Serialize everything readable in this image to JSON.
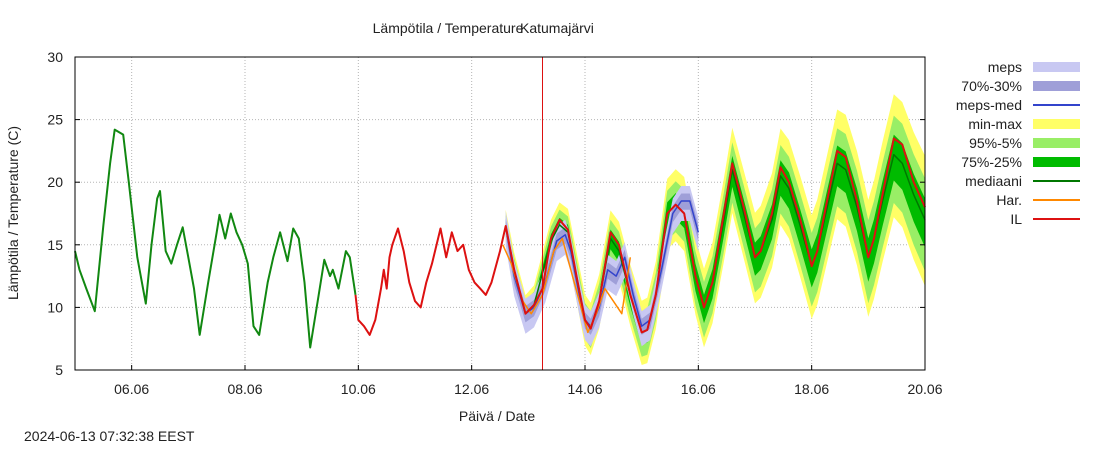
{
  "chart_data": {
    "type": "line",
    "title": "Lämpötila / Temperature",
    "station": "Katumajärvi",
    "xlabel": "Päivä / Date",
    "ylabel": "Lämpötila / Temperature (C)",
    "xlim": [
      5.0,
      20.0
    ],
    "ylim": [
      5,
      30
    ],
    "x_ticks": [
      6,
      8,
      10,
      12,
      14,
      16,
      18,
      20
    ],
    "x_tick_labels": [
      "06.06",
      "08.06",
      "10.06",
      "12.06",
      "14.06",
      "16.06",
      "18.06",
      "20.06"
    ],
    "y_ticks": [
      5,
      10,
      15,
      20,
      25,
      30
    ],
    "y_tick_labels": [
      "5",
      "10",
      "15",
      "20",
      "25",
      "30"
    ],
    "grid": true,
    "now_marker_x": 13.25,
    "legend": [
      {
        "label": "meps",
        "kind": "band",
        "color": "#c8c8f2"
      },
      {
        "label": "70%-30%",
        "kind": "band",
        "color": "#9f9fd8"
      },
      {
        "label": "meps-med",
        "kind": "line",
        "color": "#3344cc"
      },
      {
        "label": "min-max",
        "kind": "band",
        "color": "#ffff66"
      },
      {
        "label": "95%-5%",
        "kind": "band",
        "color": "#99ee66"
      },
      {
        "label": "75%-25%",
        "kind": "band",
        "color": "#00bb00"
      },
      {
        "label": "mediaani",
        "kind": "line",
        "color": "#007700"
      },
      {
        "label": "Har.",
        "kind": "line",
        "color": "#ff8800"
      },
      {
        "label": "IL",
        "kind": "line",
        "color": "#dd1111"
      }
    ],
    "series": [
      {
        "name": "observed",
        "color": "#118811",
        "x": [
          5.0,
          5.08,
          5.2,
          5.35,
          5.5,
          5.62,
          5.7,
          5.85,
          5.95,
          6.1,
          6.25,
          6.35,
          6.45,
          6.5,
          6.6,
          6.7,
          6.8,
          6.9,
          7.0,
          7.1,
          7.2,
          7.35,
          7.5,
          7.55,
          7.65,
          7.75,
          7.85,
          7.95,
          8.05,
          8.15,
          8.25,
          8.4,
          8.5,
          8.62,
          8.75,
          8.85,
          8.95,
          9.05,
          9.15,
          9.3,
          9.4,
          9.5,
          9.55,
          9.65,
          9.78,
          9.85,
          9.95
        ],
        "y": [
          14.5,
          13,
          11.5,
          9.7,
          16.5,
          21.5,
          24.2,
          23.8,
          20,
          14,
          10.3,
          15,
          18.7,
          19.3,
          14.5,
          13.5,
          15,
          16.4,
          14,
          11.5,
          7.8,
          12,
          16,
          17.4,
          15.5,
          17.5,
          16,
          15,
          13.5,
          8.5,
          7.8,
          12,
          14,
          16,
          13.7,
          16.3,
          15.5,
          12,
          6.8,
          11,
          13.8,
          12.5,
          13,
          11.5,
          14.5,
          14,
          11
        ]
      },
      {
        "name": "IL",
        "color": "#dd1111",
        "x": [
          9.95,
          10.0,
          10.1,
          10.2,
          10.3,
          10.4,
          10.45,
          10.5,
          10.55,
          10.6,
          10.7,
          10.8,
          10.9,
          11.0,
          11.1,
          11.2,
          11.3,
          11.45,
          11.55,
          11.65,
          11.75,
          11.85,
          11.95,
          12.05,
          12.15,
          12.25,
          12.35,
          12.5,
          12.6,
          12.75,
          12.95,
          13.1,
          13.25,
          13.4,
          13.55,
          13.7,
          13.85,
          14.0,
          14.1,
          14.25,
          14.45,
          14.6,
          14.8,
          15.0,
          15.1,
          15.25,
          15.45,
          15.6,
          15.75,
          15.95,
          16.1,
          16.25,
          16.45,
          16.6,
          16.8,
          17.0,
          17.1,
          17.3,
          17.45,
          17.6,
          17.8,
          18.0,
          18.1,
          18.25,
          18.45,
          18.6,
          18.8,
          19.0,
          19.1,
          19.25,
          19.45,
          19.6,
          19.8,
          20.0
        ],
        "y": [
          11,
          9,
          8.5,
          7.8,
          9,
          11.5,
          13,
          11.5,
          14,
          15,
          16.3,
          14.5,
          12,
          10.5,
          10,
          12,
          13.5,
          16.3,
          14,
          16,
          14.5,
          15,
          13,
          12,
          11.5,
          11,
          12,
          14.5,
          16.5,
          13,
          9.5,
          10.2,
          11.5,
          15.5,
          17,
          16.2,
          12.5,
          9,
          8.3,
          10.5,
          16,
          15,
          11,
          8,
          8.2,
          11,
          17.5,
          18.2,
          17.5,
          12.5,
          10,
          12,
          17.5,
          21.5,
          18,
          14,
          14.5,
          17.5,
          21.2,
          20,
          17,
          13.3,
          14.5,
          18,
          22.5,
          22,
          18.5,
          14,
          15.5,
          19,
          23.5,
          23,
          20,
          18
        ]
      },
      {
        "name": "mediaani",
        "color": "#007700",
        "x": [
          12.6,
          12.75,
          12.95,
          13.1,
          13.4,
          13.55,
          13.7,
          13.85,
          14.0,
          14.1,
          14.25,
          14.45,
          14.6,
          14.8,
          15.0,
          15.1,
          15.25,
          15.45,
          15.6,
          15.75,
          15.95,
          16.1,
          16.25,
          16.45,
          16.6,
          16.8,
          17.0,
          17.1,
          17.3,
          17.45,
          17.6,
          17.8,
          18.0,
          18.1,
          18.25,
          18.45,
          18.6,
          18.8,
          19.0,
          19.1,
          19.25,
          19.45,
          19.6,
          19.8,
          20.0
        ],
        "y": [
          16.5,
          13,
          9.5,
          10.2,
          15.3,
          16.6,
          16,
          12.5,
          9,
          8.3,
          10.5,
          15.5,
          14.5,
          11,
          8,
          8.2,
          11,
          17.5,
          18.2,
          17.5,
          12.5,
          10,
          12,
          17,
          21,
          17.5,
          14,
          14.5,
          17,
          20.5,
          19.5,
          16.5,
          13.3,
          14.5,
          17.5,
          21.5,
          21,
          18,
          14,
          15.5,
          18.5,
          22.2,
          21.5,
          19,
          17
        ]
      },
      {
        "name": "meps-med",
        "color": "#3344cc",
        "x": [
          12.6,
          12.75,
          12.95,
          13.1,
          13.3,
          13.5,
          13.65,
          13.75,
          13.9,
          14.0,
          14.1,
          14.25,
          14.4,
          14.55,
          14.7,
          14.85,
          15.0,
          15.15,
          15.35,
          15.55,
          15.7,
          15.85,
          16.0
        ],
        "y": [
          16.5,
          12.5,
          9.5,
          10,
          12,
          15.3,
          15.8,
          14.5,
          11,
          9,
          8.5,
          10,
          13,
          12.5,
          14,
          11,
          8.5,
          9,
          13,
          17.5,
          18.5,
          18.5,
          16
        ]
      },
      {
        "name": "Har.",
        "color": "#ff8800",
        "x": [
          12.55,
          12.7,
          12.9,
          13.05,
          13.25,
          13.45,
          13.6,
          13.75,
          13.9,
          14.05,
          14.2,
          14.35,
          14.5,
          14.65,
          14.8
        ],
        "y": [
          15,
          13.5,
          10.5,
          9.5,
          11,
          14.5,
          15.5,
          13,
          10.5,
          8,
          9.5,
          11.5,
          10.5,
          9.5,
          14
        ]
      }
    ]
  },
  "footer": {
    "timestamp": "2024-06-13 07:32:38 EEST"
  }
}
